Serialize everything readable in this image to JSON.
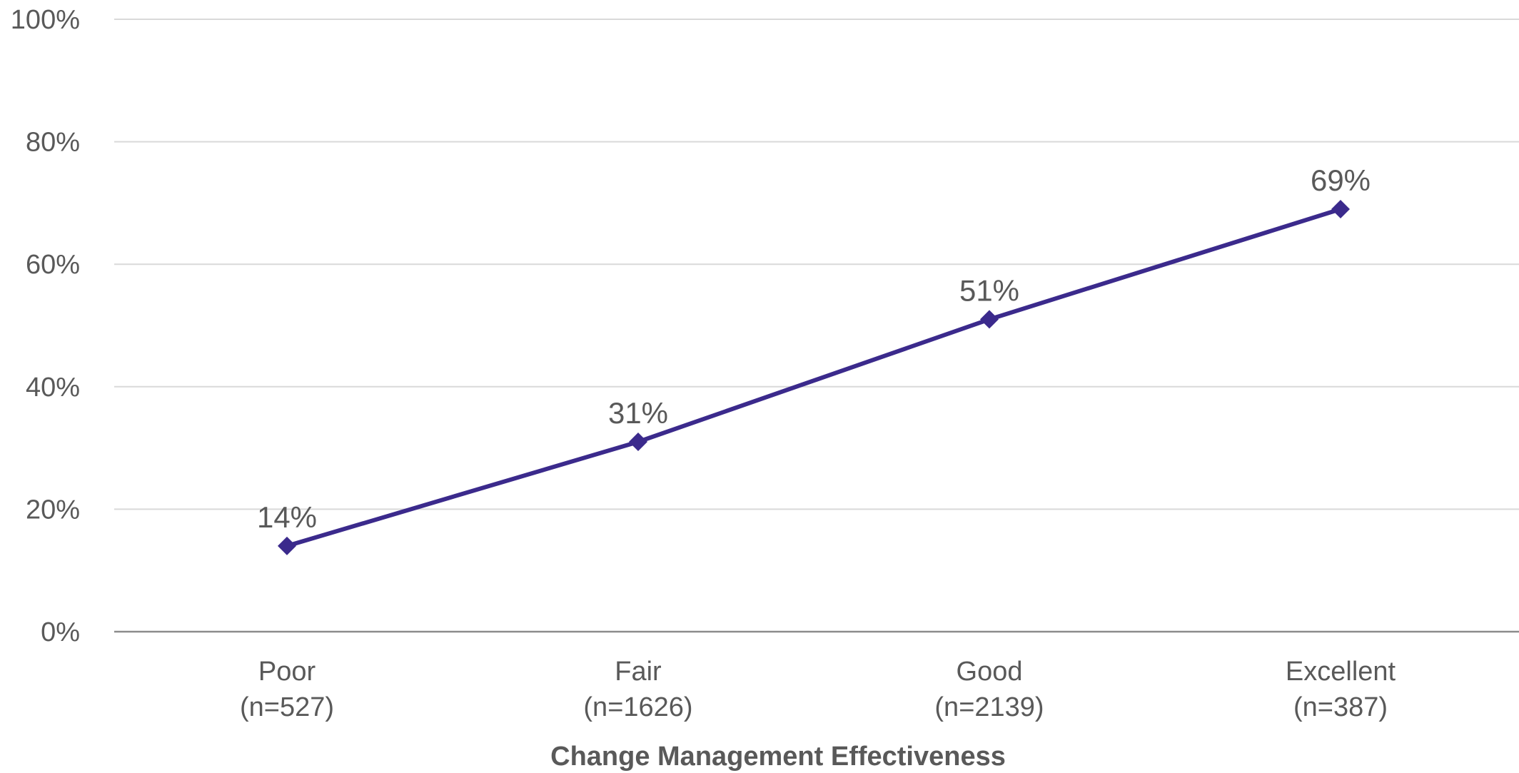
{
  "chart_data": {
    "type": "line",
    "categories": [
      "Poor",
      "Fair",
      "Good",
      "Excellent"
    ],
    "category_sublabels": [
      "(n=527)",
      "(n=1626)",
      "(n=2139)",
      "(n=387)"
    ],
    "series": [
      {
        "values": [
          14,
          31,
          51,
          69
        ],
        "data_labels": [
          "14%",
          "31%",
          "51%",
          "69%"
        ],
        "color": "#3B2A8C",
        "marker": "diamond"
      }
    ],
    "xlabel": "Change Management Effectiveness",
    "ylabel": "",
    "ylim": [
      0,
      100
    ],
    "yticks": [
      0,
      20,
      40,
      60,
      80,
      100
    ],
    "ytick_labels": [
      "0%",
      "20%",
      "40%",
      "60%",
      "80%",
      "100%"
    ],
    "grid": "horizontal",
    "colors": {
      "grid": "#D9D9D9",
      "axis": "#8C8C8C",
      "text": "#595959"
    }
  }
}
